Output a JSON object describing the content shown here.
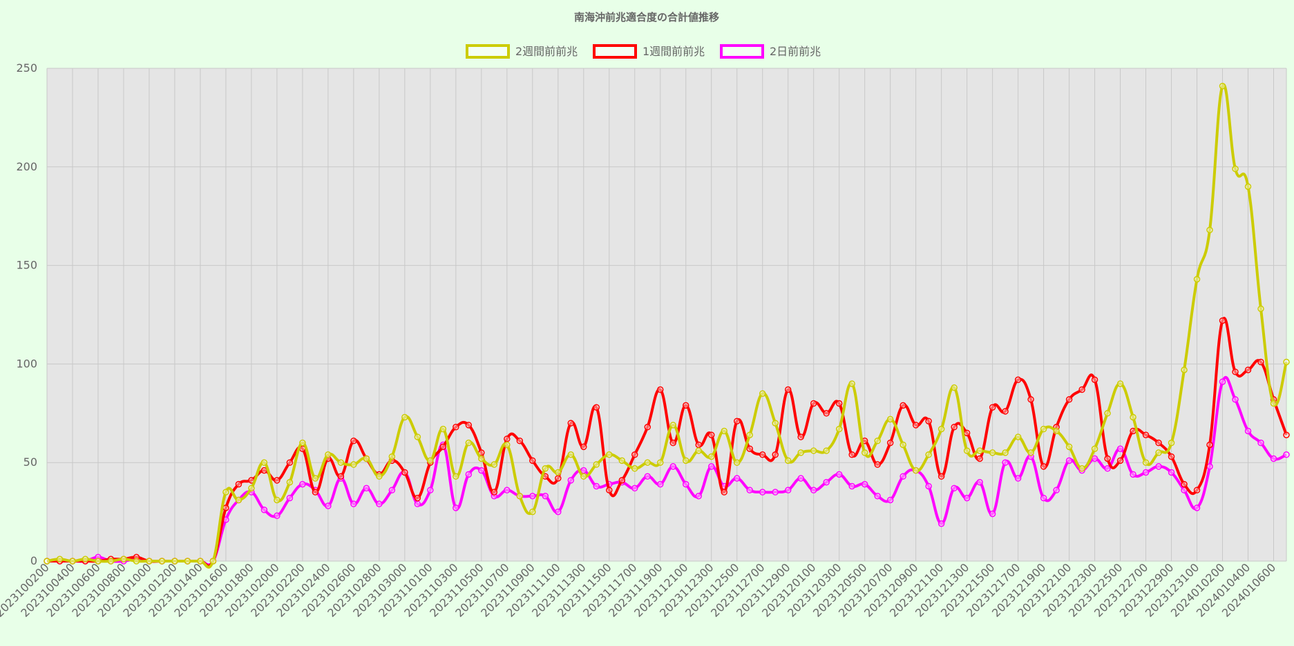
{
  "chart_data": {
    "type": "line",
    "title": "南海沖前兆適合度の合計値推移",
    "ylim": [
      0,
      250
    ],
    "yticks": [
      "0",
      "50",
      "100",
      "150",
      "200",
      "250"
    ],
    "grid": true,
    "legend_position": "top-center",
    "x_tick_labels": [
      "2023100200",
      "2023100400",
      "2023100600",
      "2023100800",
      "2023101000",
      "2023101200",
      "2023101400",
      "2023101600",
      "2023101800",
      "2023102000",
      "2023102200",
      "2023102400",
      "2023102600",
      "2023102800",
      "2023103000",
      "2023110100",
      "2023110300",
      "2023110500",
      "2023110700",
      "2023110900",
      "2023111100",
      "2023111300",
      "2023111500",
      "2023111700",
      "2023111900",
      "2023112100",
      "2023112300",
      "2023112500",
      "2023112700",
      "2023112900",
      "2023120100",
      "2023120300",
      "2023120500",
      "2023120700",
      "2023120900",
      "2023121100",
      "2023121300",
      "2023121500",
      "2023121700",
      "2023121900",
      "2023122100",
      "2023122300",
      "2023122500",
      "2023122700",
      "2023122900",
      "2023123100",
      "2024010200",
      "2024010400",
      "2024010600"
    ],
    "series": [
      {
        "name": "2週間前前兆",
        "color": "#cccc00",
        "values": [
          0,
          1,
          0,
          1,
          0,
          0,
          1,
          0,
          0,
          0,
          0,
          0,
          0,
          0,
          35,
          31,
          37,
          50,
          31,
          40,
          60,
          42,
          54,
          50,
          49,
          52,
          43,
          53,
          73,
          63,
          51,
          67,
          43,
          60,
          52,
          49,
          59,
          33,
          25,
          47,
          45,
          54,
          43,
          49,
          54,
          51,
          47,
          50,
          50,
          69,
          51,
          56,
          53,
          66,
          50,
          64,
          85,
          70,
          51,
          55,
          56,
          56,
          67,
          90,
          55,
          61,
          72,
          59,
          46,
          54,
          67,
          88,
          56,
          56,
          55,
          55,
          63,
          55,
          67,
          66,
          58,
          47,
          57,
          75,
          90,
          73,
          50,
          55,
          60,
          97,
          143,
          168,
          241,
          199,
          190,
          128,
          80,
          101
        ]
      },
      {
        "name": "1週間前前兆",
        "color": "#ff0000",
        "values": [
          0,
          0,
          0,
          0,
          0,
          1,
          1,
          2,
          0,
          0,
          0,
          0,
          0,
          0,
          27,
          39,
          41,
          46,
          41,
          50,
          57,
          35,
          52,
          43,
          61,
          52,
          44,
          51,
          45,
          32,
          50,
          58,
          68,
          69,
          55,
          35,
          62,
          61,
          51,
          43,
          42,
          70,
          58,
          78,
          36,
          41,
          54,
          68,
          87,
          60,
          79,
          59,
          64,
          35,
          71,
          57,
          54,
          54,
          87,
          63,
          80,
          75,
          80,
          54,
          61,
          49,
          60,
          79,
          69,
          71,
          43,
          68,
          65,
          52,
          78,
          76,
          92,
          82,
          48,
          68,
          82,
          87,
          92,
          52,
          51,
          66,
          64,
          60,
          53,
          39,
          36,
          59,
          122,
          96,
          97,
          101,
          82,
          64
        ]
      },
      {
        "name": "2日前前兆",
        "color": "#ff00ff",
        "values": [
          0,
          0,
          0,
          0,
          2,
          0,
          0,
          1,
          0,
          0,
          0,
          0,
          0,
          0,
          21,
          31,
          35,
          26,
          23,
          32,
          39,
          36,
          28,
          42,
          29,
          37,
          29,
          36,
          45,
          29,
          36,
          59,
          27,
          44,
          46,
          33,
          36,
          33,
          33,
          33,
          25,
          41,
          46,
          38,
          39,
          40,
          37,
          43,
          39,
          48,
          39,
          33,
          48,
          38,
          42,
          36,
          35,
          35,
          36,
          42,
          36,
          40,
          44,
          38,
          39,
          33,
          31,
          43,
          46,
          38,
          19,
          37,
          32,
          40,
          24,
          50,
          42,
          53,
          32,
          36,
          51,
          46,
          52,
          47,
          57,
          44,
          45,
          48,
          45,
          36,
          27,
          48,
          91,
          82,
          66,
          60,
          52,
          54
        ]
      }
    ]
  }
}
